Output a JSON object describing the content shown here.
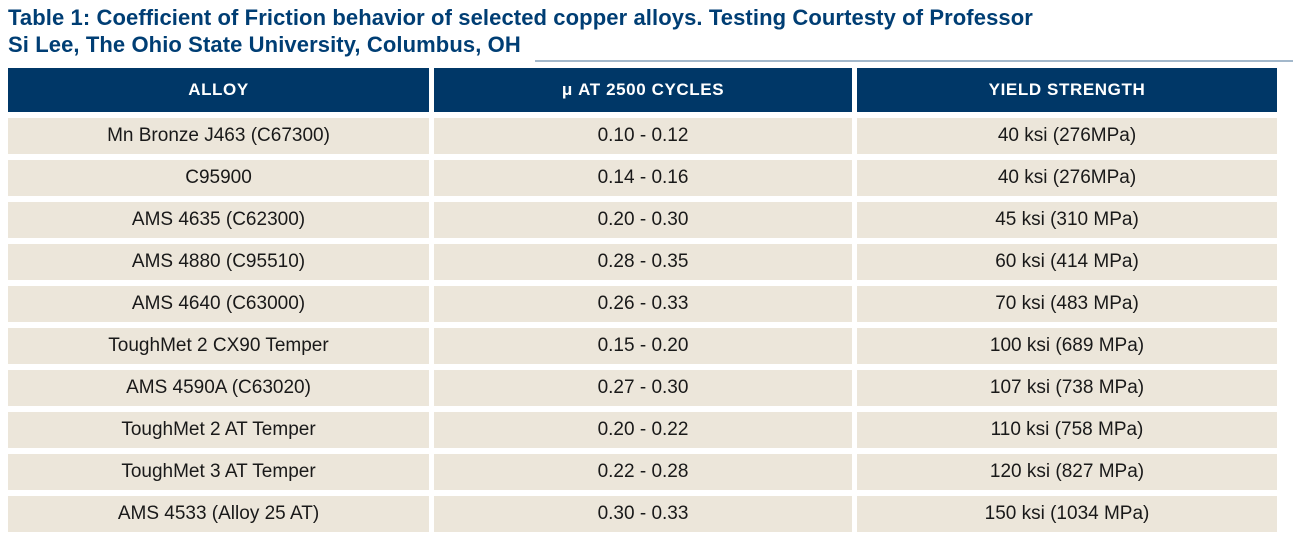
{
  "title": {
    "line1": "Table 1: Coefficient of Friction behavior of selected copper alloys. Testing Courtesty of Professor",
    "line2": "Si Lee, The Ohio State University, Columbus, OH"
  },
  "table": {
    "columns": [
      "ALLOY",
      "μ AT 2500 CYCLES",
      "YIELD STRENGTH"
    ],
    "rows": [
      [
        "Mn Bronze J463 (C67300)",
        "0.10 - 0.12",
        "40 ksi (276MPa)"
      ],
      [
        "C95900",
        "0.14 - 0.16",
        "40 ksi (276MPa)"
      ],
      [
        "AMS 4635 (C62300)",
        "0.20 - 0.30",
        "45 ksi (310 MPa)"
      ],
      [
        "AMS 4880 (C95510)",
        "0.28 - 0.35",
        "60 ksi (414 MPa)"
      ],
      [
        "AMS 4640 (C63000)",
        "0.26 - 0.33",
        "70 ksi (483 MPa)"
      ],
      [
        "ToughMet 2 CX90 Temper",
        "0.15 - 0.20",
        "100 ksi (689 MPa)"
      ],
      [
        "AMS 4590A (C63020)",
        "0.27 - 0.30",
        "107 ksi (738 MPa)"
      ],
      [
        "ToughMet 2 AT Temper",
        "0.20 - 0.22",
        "110 ksi (758 MPa)"
      ],
      [
        "ToughMet 3 AT Temper",
        "0.22 - 0.28",
        "120 ksi (827 MPa)"
      ],
      [
        "AMS 4533 (Alloy 25 AT)",
        "0.30 - 0.33",
        "150 ksi (1034 MPa)"
      ]
    ]
  },
  "chart_data": {
    "type": "table",
    "title": "Table 1: Coefficient of Friction behavior of selected copper alloys. Testing Courtesty of Professor Si Lee, The Ohio State University, Columbus, OH",
    "columns": [
      "ALLOY",
      "μ AT 2500 CYCLES",
      "YIELD STRENGTH"
    ],
    "rows": [
      [
        "Mn Bronze J463 (C67300)",
        "0.10 - 0.12",
        "40 ksi (276MPa)"
      ],
      [
        "C95900",
        "0.14 - 0.16",
        "40 ksi (276MPa)"
      ],
      [
        "AMS 4635 (C62300)",
        "0.20 - 0.30",
        "45 ksi (310 MPa)"
      ],
      [
        "AMS 4880 (C95510)",
        "0.28 - 0.35",
        "60 ksi (414 MPa)"
      ],
      [
        "AMS 4640 (C63000)",
        "0.26 - 0.33",
        "70 ksi (483 MPa)"
      ],
      [
        "ToughMet 2 CX90 Temper",
        "0.15 - 0.20",
        "100 ksi (689 MPa)"
      ],
      [
        "AMS 4590A (C63020)",
        "0.27 - 0.30",
        "107 ksi (738 MPa)"
      ],
      [
        "ToughMet 2 AT Temper",
        "0.20 - 0.22",
        "110 ksi (758 MPa)"
      ],
      [
        "ToughMet 3 AT Temper",
        "0.22 - 0.28",
        "120 ksi (827 MPa)"
      ],
      [
        "AMS 4533 (Alloy 25 AT)",
        "0.30 - 0.33",
        "150 ksi (1034 MPa)"
      ]
    ]
  },
  "colors": {
    "header_bg": "#003767",
    "header_text": "#ffffff",
    "row_bg": "#ece6da",
    "cell_text": "#191919",
    "title_text": "#003e74",
    "rule": "#a3b8cb"
  }
}
